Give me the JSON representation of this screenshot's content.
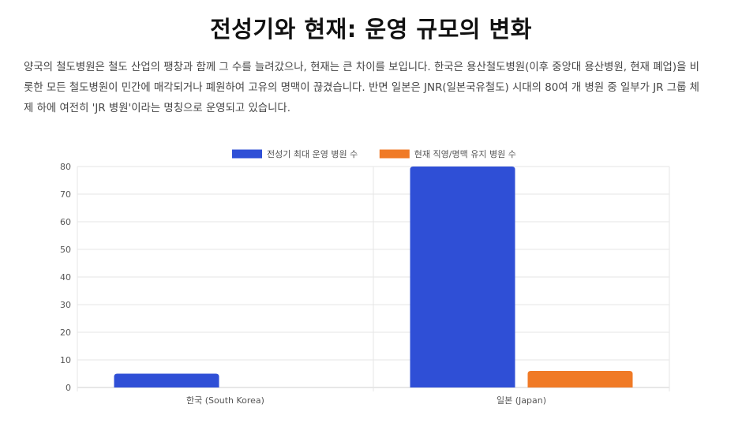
{
  "page": {
    "title": "전성기와 현재: 운영 규모의 변화",
    "intro": "양국의 철도병원은 철도 산업의 팽창과 함께 그 수를 늘려갔으나, 현재는 큰 차이를 보입니다. 한국은 용산철도병원(이후 중앙대 용산병원, 현재 폐업)을 비롯한 모든 철도병원이 민간에 매각되거나 폐원하여 고유의 명맥이 끊겼습니다. 반면 일본은 JNR(일본국유철도) 시대의 80여 개 병원 중 일부가 JR 그룹 체제 하에 여전히 'JR 병원'이라는 명칭으로 운영되고 있습니다."
  },
  "chart_data": {
    "type": "bar",
    "categories": [
      "한국 (South Korea)",
      "일본 (Japan)"
    ],
    "series": [
      {
        "name": "전성기 최대 운영 병원 수",
        "values": [
          5,
          80
        ],
        "color": "#2f4fd6"
      },
      {
        "name": "현재 직영/명맥 유지 병원 수",
        "values": [
          0,
          6
        ],
        "color": "#f07a26"
      }
    ],
    "ylim": [
      0,
      80
    ],
    "yticks": [
      0,
      10,
      20,
      30,
      40,
      50,
      60,
      70,
      80
    ],
    "grid": true,
    "legend_position": "top-center"
  }
}
